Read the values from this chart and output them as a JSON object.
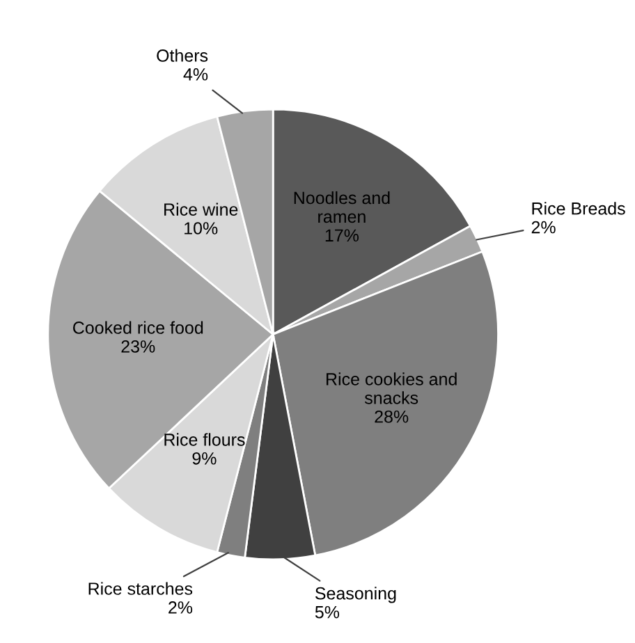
{
  "chart_data": {
    "type": "pie",
    "categories": [
      "Noodles and\nramen",
      "Rice Breads",
      "Rice cookies and\nsnacks",
      "Seasoning",
      "Rice starches",
      "Rice flours",
      "Cooked rice food",
      "Rice wine",
      "Others"
    ],
    "values": [
      17,
      2,
      28,
      5,
      2,
      9,
      23,
      10,
      4
    ],
    "value_labels": [
      "17%",
      "2%",
      "28%",
      "5%",
      "2%",
      "9%",
      "23%",
      "10%",
      "4%"
    ],
    "colors": [
      "#595959",
      "#a6a6a6",
      "#7f7f7f",
      "#404040",
      "#7f7f7f",
      "#d9d9d9",
      "#a6a6a6",
      "#d9d9d9",
      "#a6a6a6"
    ]
  }
}
